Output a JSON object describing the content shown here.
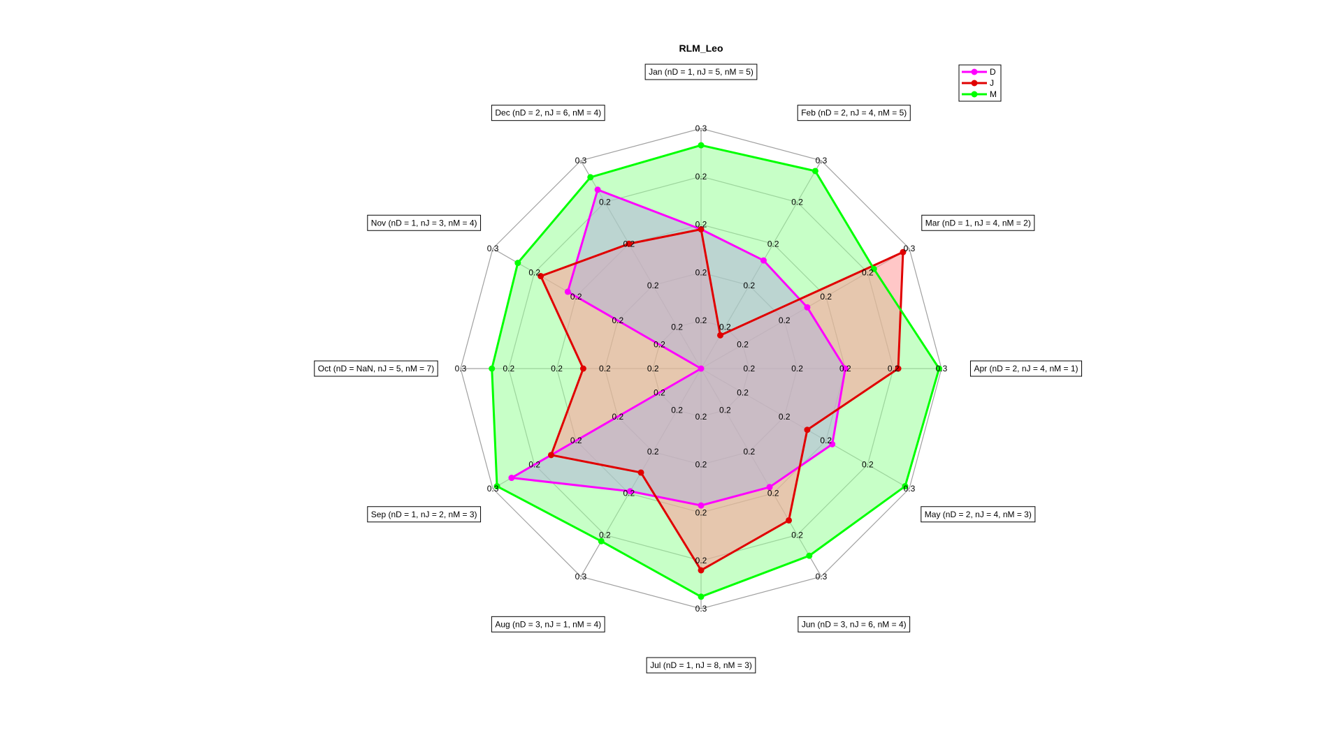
{
  "chart_data": {
    "type": "radar",
    "title": "RLM_Leo",
    "axes": [
      "Jan (nD = 1, nJ = 5, nM = 5)",
      "Feb (nD = 2, nJ = 4, nM = 5)",
      "Mar (nD = 1, nJ = 4, nM = 2)",
      "Apr (nD = 2, nJ = 4, nM = 1)",
      "May (nD = 2, nJ = 4, nM = 3)",
      "Jun (nD = 3, nJ = 6, nM = 4)",
      "Jul (nD = 1, nJ = 8, nM = 3)",
      "Aug (nD = 3, nJ = 1, nM = 4)",
      "Sep (nD = 1, nJ = 2, nM = 3)",
      "Oct (nD = NaN, nJ = 5, nM = 7)",
      "Nov (nD = 1, nJ = 3, nM = 4)",
      "Dec (nD = 2, nJ = 6, nM = 4)"
    ],
    "tick_labels": [
      "0.2",
      "0.2",
      "0.2",
      "0.2",
      "0.3"
    ],
    "series": [
      {
        "name": "D",
        "color": "#ff00ff",
        "fill": "#b3b3d9",
        "values": [
          0.58,
          0.52,
          0.51,
          0.6,
          0.63,
          0.57,
          0.57,
          0.59,
          0.91,
          0.0,
          0.64,
          0.86
        ]
      },
      {
        "name": "J",
        "color": "#e00000",
        "fill": "#ff9999",
        "values": [
          0.58,
          0.16,
          0.97,
          0.82,
          0.51,
          0.73,
          0.84,
          0.5,
          0.72,
          0.49,
          0.77,
          0.6
        ]
      },
      {
        "name": "M",
        "color": "#00ff00",
        "fill": "#99ff99",
        "values": [
          0.93,
          0.95,
          0.83,
          0.99,
          0.98,
          0.9,
          0.95,
          0.83,
          0.98,
          0.87,
          0.88,
          0.92
        ]
      }
    ],
    "legend": "top-right",
    "grid": true
  }
}
